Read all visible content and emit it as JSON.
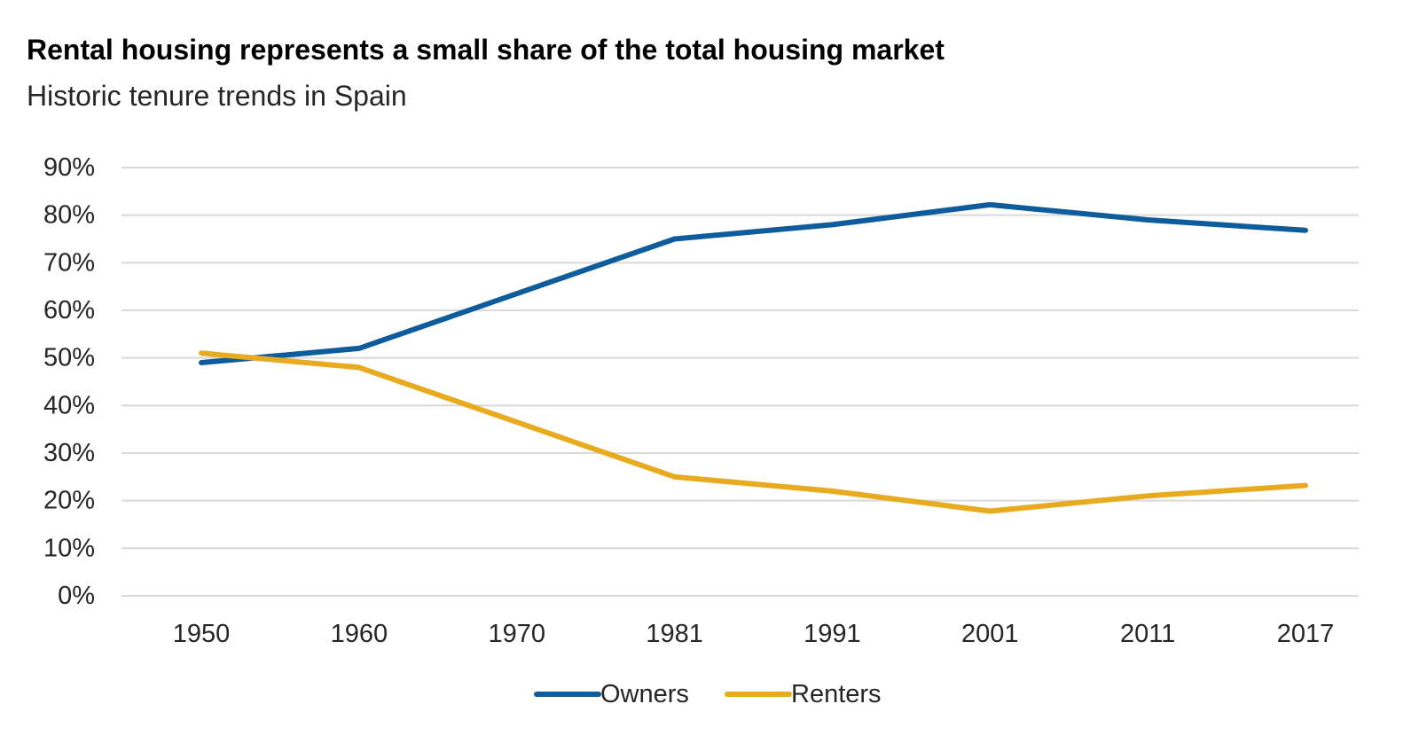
{
  "chart_data": {
    "type": "line",
    "title": "Rental housing represents a small share of the total housing market",
    "subtitle": "Historic tenure trends in Spain",
    "xlabel": "",
    "ylabel": "",
    "categories": [
      "1950",
      "1960",
      "1970",
      "1981",
      "1991",
      "2001",
      "2011",
      "2017"
    ],
    "y_ticks": [
      "0%",
      "10%",
      "20%",
      "30%",
      "40%",
      "50%",
      "60%",
      "70%",
      "80%",
      "90%"
    ],
    "ylim": [
      0,
      90
    ],
    "grid": "horizontal",
    "legend_position": "bottom",
    "series": [
      {
        "name": "Owners",
        "color": "#0f5c9c",
        "values": [
          49,
          52,
          63.5,
          75,
          78,
          82.2,
          79,
          76.8
        ]
      },
      {
        "name": "Renters",
        "color": "#e8aa1e",
        "values": [
          51,
          48,
          36.5,
          25,
          22,
          17.8,
          21,
          23.2
        ]
      }
    ]
  }
}
